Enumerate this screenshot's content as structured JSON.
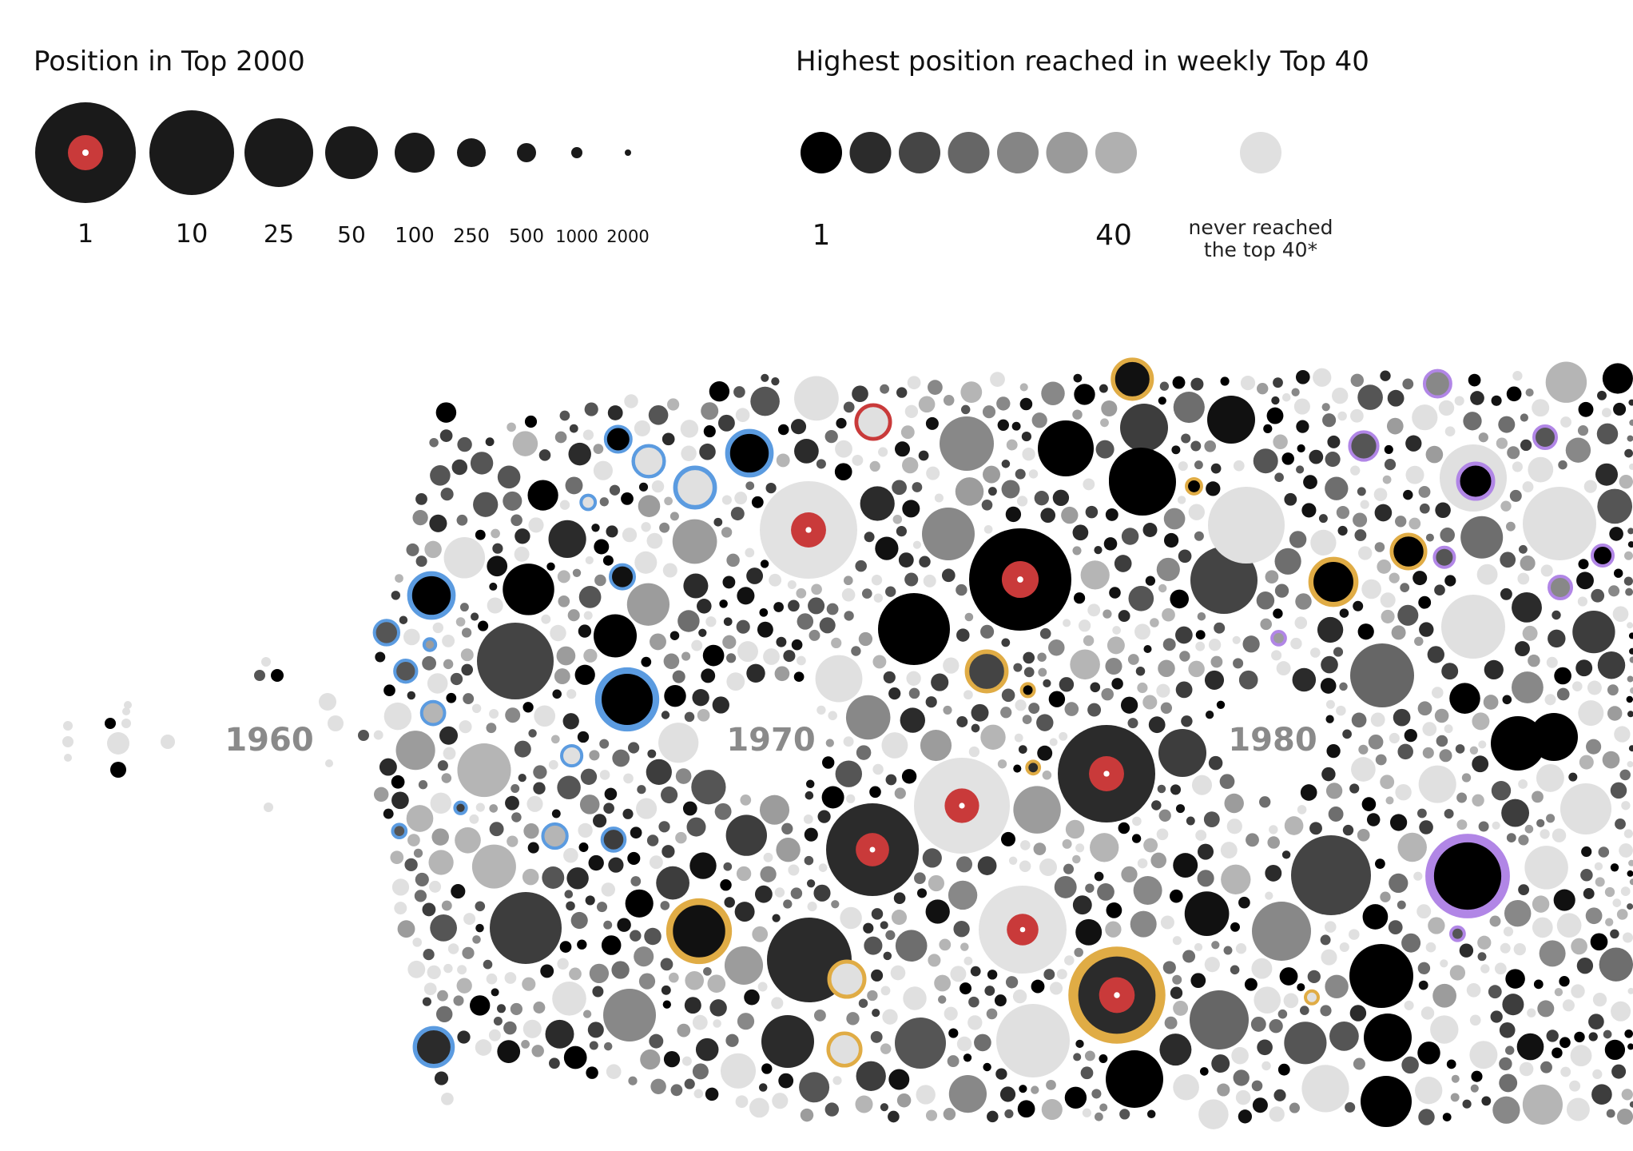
{
  "chart_data": {
    "type": "scatter",
    "size_legend": {
      "title": "Position in Top 2000",
      "ticks": [
        "1",
        "10",
        "25",
        "50",
        "100",
        "250",
        "500",
        "1000",
        "2000"
      ]
    },
    "color_legend": {
      "title": "Highest position reached in weekly Top 40",
      "swatches": [
        "#000000",
        "#2b2b2b",
        "#454545",
        "#666666",
        "#858585",
        "#9a9a9a",
        "#b0b0b0"
      ],
      "min_label": "1",
      "max_label": "40",
      "never_label_line1": "never reached",
      "never_label_line2": "the top 40*",
      "never_color": "#e0e0e0"
    },
    "decade_labels": [
      "1960",
      "1970",
      "1980"
    ],
    "colors": {
      "red_record": "#c93a3a",
      "ring_blue": "#5b9be0",
      "ring_gold": "#e0ac45",
      "ring_purple": "#b186e6",
      "ring_red": "#c93a3a"
    }
  }
}
